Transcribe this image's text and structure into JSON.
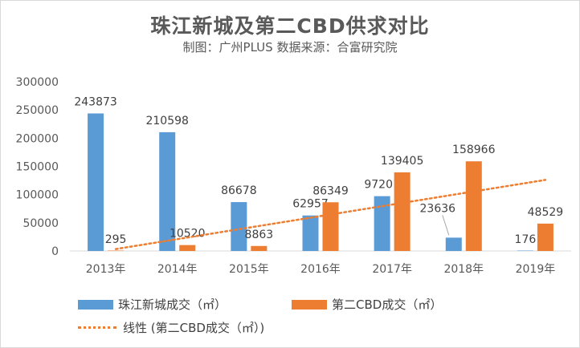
{
  "chart_data": {
    "type": "bar",
    "title": "珠江新城及第二CBD供求对比",
    "subtitle": "制图：广州PLUS  数据来源：合富研究院",
    "categories": [
      "2013年",
      "2014年",
      "2015年",
      "2016年",
      "2017年",
      "2018年",
      "2019年"
    ],
    "series": [
      {
        "name": "珠江新城成交（㎡）",
        "color": "#5B9BD5",
        "values": [
          243873,
          210598,
          86678,
          62957,
          97201,
          23636,
          176
        ]
      },
      {
        "name": "第二CBD成交（㎡）",
        "color": "#ED7D31",
        "values": [
          295,
          10520,
          8863,
          86349,
          139405,
          158966,
          48529
        ]
      }
    ],
    "trendline": {
      "name": "线性 (第二CBD成交（㎡）)",
      "color": "#ED7D31",
      "style": "dotted",
      "series_index": 1
    },
    "ylim": [
      0,
      300000
    ],
    "yticks": [
      "0",
      "50000",
      "100000",
      "150000",
      "200000",
      "250000",
      "300000"
    ],
    "xlabel": "",
    "ylabel": "",
    "grid": false,
    "legend": "bottom"
  }
}
